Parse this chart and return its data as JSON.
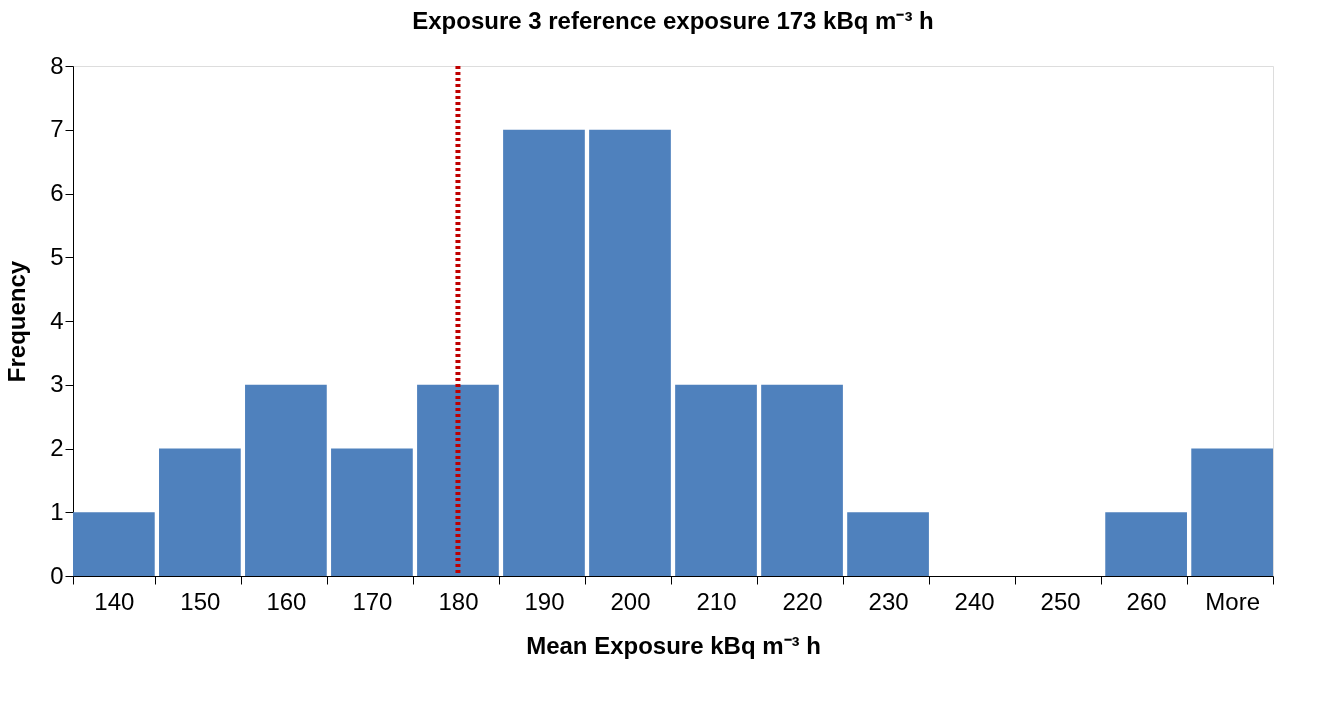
{
  "chart_data": {
    "type": "bar",
    "title": "Exposure 3 reference exposure 173 kBq m⁻³ h",
    "xlabel": "Mean Exposure kBq m⁻³ h",
    "ylabel": "Frequency",
    "categories": [
      "140",
      "150",
      "160",
      "170",
      "180",
      "190",
      "200",
      "210",
      "220",
      "230",
      "240",
      "250",
      "260",
      "More"
    ],
    "values": [
      1,
      2,
      3,
      2,
      3,
      7,
      7,
      3,
      3,
      1,
      0,
      0,
      1,
      2
    ],
    "color": "#4f81bd",
    "ylim": [
      0,
      8
    ],
    "yticks": [
      0,
      1,
      2,
      3,
      4,
      5,
      6,
      7,
      8
    ],
    "ref_lines": [
      {
        "axis": "x",
        "value": "180",
        "color": "#c00000",
        "line_style": "dotted"
      }
    ],
    "grid": false
  }
}
